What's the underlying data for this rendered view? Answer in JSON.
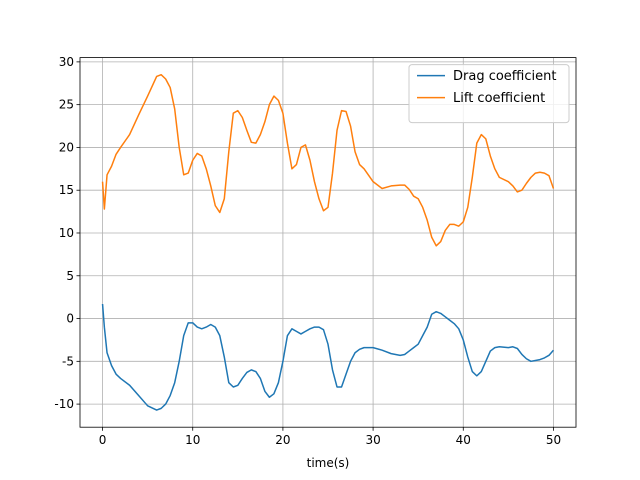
{
  "chart_data": {
    "type": "line",
    "xlabel": "time(s)",
    "x": [
      0,
      0.2,
      0.5,
      1,
      1.5,
      2,
      3,
      4,
      5,
      6,
      6.5,
      7,
      7.5,
      8,
      8.5,
      9,
      9.5,
      10,
      10.5,
      11,
      11.5,
      12,
      12.5,
      13,
      13.5,
      14,
      14.5,
      15,
      15.5,
      16,
      16.5,
      17,
      17.5,
      18,
      18.5,
      19,
      19.5,
      20,
      20.5,
      21,
      21.5,
      22,
      22.5,
      23,
      23.5,
      24,
      24.5,
      25,
      25.5,
      26,
      26.5,
      27,
      27.5,
      28,
      28.5,
      29,
      30,
      31,
      32,
      33,
      33.5,
      34,
      34.5,
      35,
      35.5,
      36,
      36.5,
      37,
      37.5,
      38,
      38.5,
      39,
      39.5,
      40,
      40.5,
      41,
      41.5,
      42,
      42.5,
      43,
      43.5,
      44,
      45,
      45.5,
      46,
      46.5,
      47,
      47.5,
      48,
      48.5,
      49,
      49.5,
      50
    ],
    "series": [
      {
        "name": "Drag coefficient",
        "color": "#1f77b4",
        "values": [
          1.7,
          -1,
          -4,
          -5.5,
          -6.5,
          -7,
          -7.8,
          -9,
          -10.2,
          -10.7,
          -10.5,
          -10,
          -9,
          -7.5,
          -5,
          -2,
          -0.5,
          -0.5,
          -1,
          -1.2,
          -1,
          -0.7,
          -1,
          -2,
          -4.5,
          -7.5,
          -8,
          -7.8,
          -7,
          -6.3,
          -6,
          -6.2,
          -7,
          -8.5,
          -9.2,
          -8.8,
          -7.5,
          -5,
          -2,
          -1.2,
          -1.5,
          -1.8,
          -1.5,
          -1.2,
          -1,
          -1,
          -1.3,
          -3,
          -6,
          -8,
          -8,
          -6.5,
          -5,
          -4,
          -3.6,
          -3.4,
          -3.4,
          -3.7,
          -4.1,
          -4.3,
          -4.2,
          -3.8,
          -3.4,
          -3,
          -2,
          -1,
          0.5,
          0.8,
          0.6,
          0.2,
          -0.2,
          -0.6,
          -1.2,
          -2.5,
          -4.5,
          -6.2,
          -6.7,
          -6.2,
          -5,
          -3.8,
          -3.4,
          -3.3,
          -3.4,
          -3.3,
          -3.5,
          -4.2,
          -4.7,
          -5,
          -4.9,
          -4.8,
          -4.6,
          -4.3,
          -3.7
        ]
      },
      {
        "name": "Lift coefficient",
        "color": "#ff7f0e",
        "values": [
          16,
          12.8,
          16.8,
          17.8,
          19.2,
          20,
          21.5,
          23.8,
          26,
          28.3,
          28.5,
          28,
          27,
          24.5,
          20,
          16.8,
          17,
          18.5,
          19.3,
          19,
          17.5,
          15.5,
          13.2,
          12.4,
          14,
          19.5,
          24,
          24.3,
          23.5,
          22,
          20.6,
          20.5,
          21.5,
          23,
          25,
          26,
          25.5,
          24,
          20.5,
          17.5,
          18,
          20,
          20.3,
          18.5,
          16,
          14,
          12.6,
          13,
          17,
          22,
          24.3,
          24.2,
          22.5,
          19.5,
          18,
          17.5,
          16,
          15.2,
          15.5,
          15.6,
          15.6,
          15.1,
          14.3,
          14,
          13,
          11.5,
          9.5,
          8.5,
          9,
          10.3,
          11,
          11,
          10.8,
          11.3,
          13,
          16.5,
          20.5,
          21.5,
          21,
          19,
          17.5,
          16.5,
          16,
          15.5,
          14.8,
          15,
          15.8,
          16.5,
          17,
          17.1,
          17,
          16.7,
          15.2
        ]
      }
    ],
    "xlim": [
      -2.5,
      52.5
    ],
    "ylim": [
      -12.7,
      30.5
    ],
    "xticks": [
      0,
      10,
      20,
      30,
      40,
      50
    ],
    "yticks": [
      -10,
      -5,
      0,
      5,
      10,
      15,
      20,
      25,
      30
    ],
    "grid": true,
    "legend": "upper right"
  }
}
